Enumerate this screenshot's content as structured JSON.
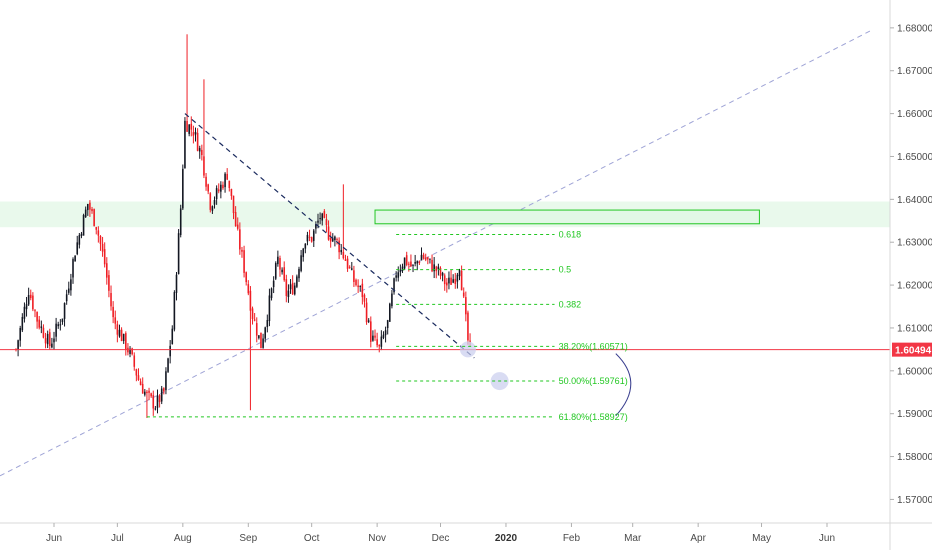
{
  "chart_data": {
    "type": "candlestick",
    "symbol_price_label": "1.60494",
    "current_price": 1.60494,
    "y_ticks": [
      "1.57000",
      "1.58000",
      "1.59000",
      "1.60000",
      "1.61000",
      "1.62000",
      "1.63000",
      "1.64000",
      "1.65000",
      "1.66000",
      "1.67000",
      "1.68000"
    ],
    "ylim": [
      1.5645,
      1.6865
    ],
    "x_ticks": [
      {
        "label": "Jun",
        "day": 18,
        "bold": false
      },
      {
        "label": "Jul",
        "day": 48,
        "bold": false
      },
      {
        "label": "Aug",
        "day": 79,
        "bold": false
      },
      {
        "label": "Sep",
        "day": 110,
        "bold": false
      },
      {
        "label": "Oct",
        "day": 140,
        "bold": false
      },
      {
        "label": "Nov",
        "day": 171,
        "bold": false
      },
      {
        "label": "Dec",
        "day": 201,
        "bold": false
      },
      {
        "label": "2020",
        "day": 232,
        "bold": true
      },
      {
        "label": "Feb",
        "day": 263,
        "bold": false
      },
      {
        "label": "Mar",
        "day": 292,
        "bold": false
      },
      {
        "label": "Apr",
        "day": 323,
        "bold": false
      },
      {
        "label": "May",
        "day": 353,
        "bold": false
      },
      {
        "label": "Jun",
        "day": 384,
        "bold": false
      }
    ],
    "fib_levels": [
      {
        "label": "0.618",
        "value": 1.6318
      },
      {
        "label": "0.5",
        "value": 1.6236
      },
      {
        "label": "0.382",
        "value": 1.6155
      },
      {
        "label": "38.20%(1.60571)",
        "value": 1.60571
      },
      {
        "label": "50.00%(1.59761)",
        "value": 1.59761
      },
      {
        "label": "61.80%(1.58927)",
        "value": 1.58927
      }
    ],
    "resistance_zone": {
      "low": 1.6343,
      "high": 1.6375
    },
    "colors": {
      "up": "#131722",
      "down": "#ef1e24",
      "fib": "#22c722",
      "price_line": "#f23645",
      "trend_dashed": "#1a2a5e",
      "long_trend": "#9fa4d6",
      "zone": "#22c722"
    }
  }
}
